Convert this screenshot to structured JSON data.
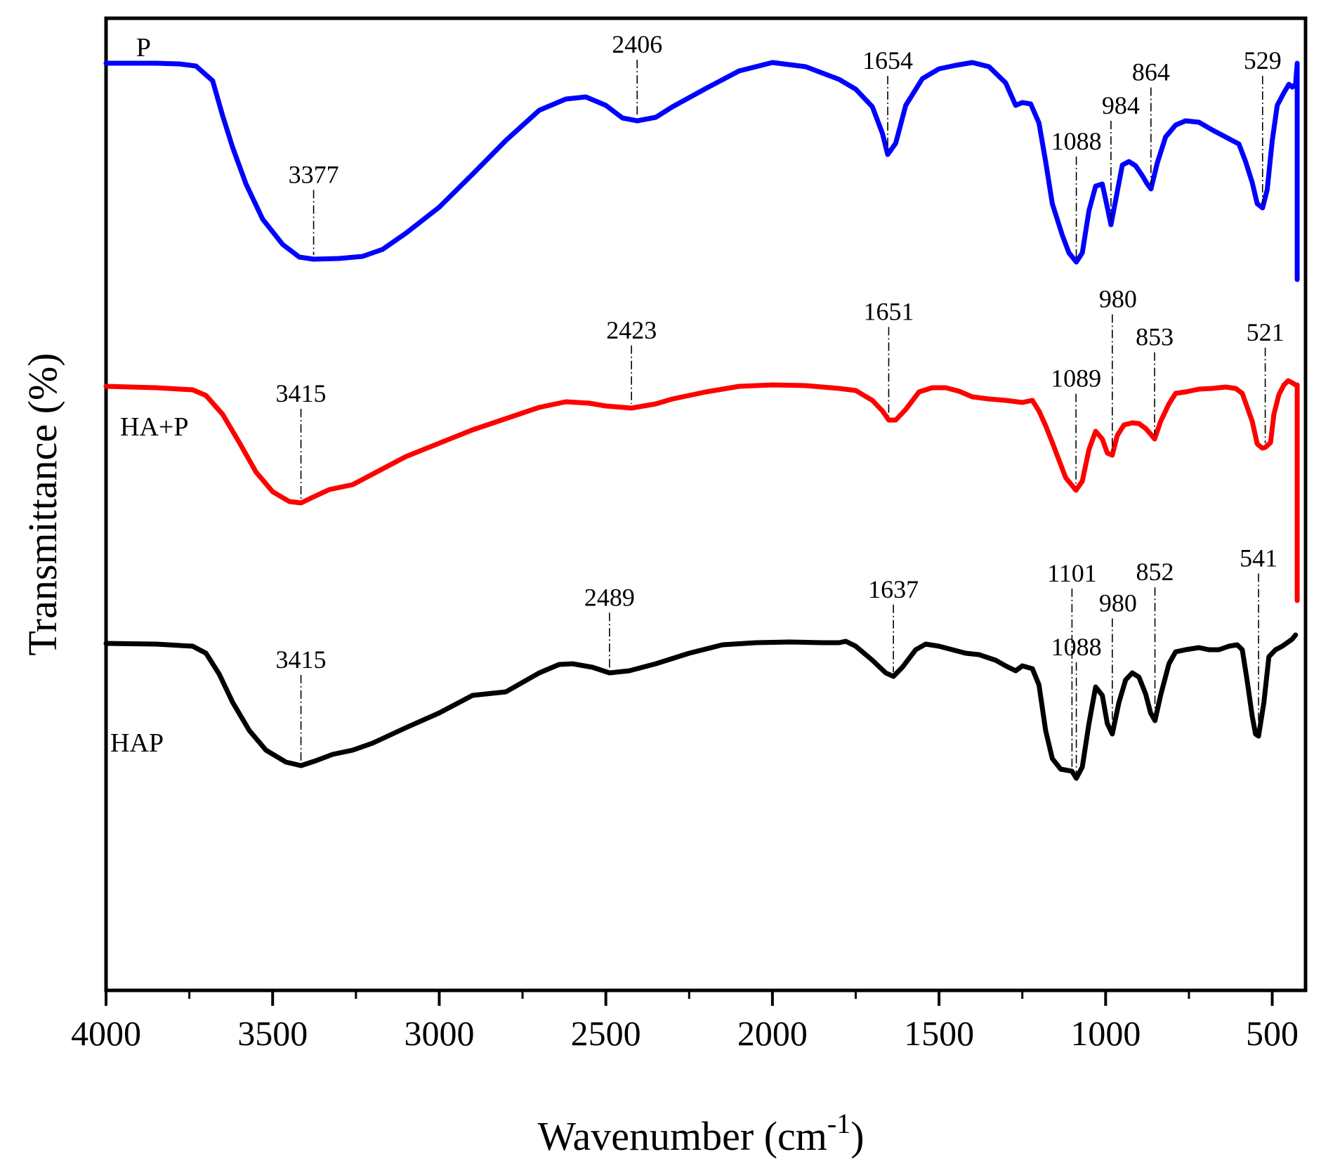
{
  "chart_data": {
    "type": "line",
    "xlabel": "Wavenumber (cm",
    "xlabel_sup": "-1",
    "xlabel_close": ")",
    "ylabel": "Transmittance (%)",
    "xlim": [
      4000,
      400
    ],
    "x_ticks": [
      4000,
      3500,
      3000,
      2500,
      2000,
      1500,
      1000,
      500
    ],
    "x_tick_labels": [
      "4000",
      "3500",
      "3000",
      "2500",
      "2000",
      "1500",
      "1000",
      "500"
    ],
    "x_minor_step": 250,
    "y_scale": "relative transmittance (offset, unlabeled)",
    "series": [
      {
        "name": "P",
        "color": "#0000ff",
        "baseline": 91,
        "points": [
          [
            4000,
            90
          ],
          [
            3850,
            90
          ],
          [
            3780,
            91
          ],
          [
            3730,
            94
          ],
          [
            3680,
            115
          ],
          [
            3650,
            165
          ],
          [
            3620,
            210
          ],
          [
            3580,
            262
          ],
          [
            3530,
            312
          ],
          [
            3470,
            348
          ],
          [
            3420,
            366
          ],
          [
            3377,
            369
          ],
          [
            3300,
            368
          ],
          [
            3230,
            365
          ],
          [
            3170,
            355
          ],
          [
            3100,
            332
          ],
          [
            3000,
            295
          ],
          [
            2900,
            248
          ],
          [
            2800,
            200
          ],
          [
            2700,
            157
          ],
          [
            2620,
            141
          ],
          [
            2560,
            138
          ],
          [
            2500,
            150
          ],
          [
            2450,
            168
          ],
          [
            2406,
            172
          ],
          [
            2350,
            167
          ],
          [
            2300,
            152
          ],
          [
            2200,
            126
          ],
          [
            2100,
            101
          ],
          [
            2000,
            89
          ],
          [
            1900,
            95
          ],
          [
            1800,
            113
          ],
          [
            1750,
            127
          ],
          [
            1700,
            152
          ],
          [
            1670,
            190
          ],
          [
            1654,
            220
          ],
          [
            1630,
            204
          ],
          [
            1600,
            150
          ],
          [
            1550,
            112
          ],
          [
            1500,
            98
          ],
          [
            1450,
            93
          ],
          [
            1400,
            89
          ],
          [
            1350,
            95
          ],
          [
            1300,
            118
          ],
          [
            1270,
            150
          ],
          [
            1250,
            146
          ],
          [
            1225,
            148
          ],
          [
            1200,
            175
          ],
          [
            1180,
            230
          ],
          [
            1160,
            290
          ],
          [
            1130,
            335
          ],
          [
            1110,
            360
          ],
          [
            1088,
            373
          ],
          [
            1070,
            360
          ],
          [
            1050,
            300
          ],
          [
            1030,
            265
          ],
          [
            1010,
            262
          ],
          [
            995,
            295
          ],
          [
            984,
            320
          ],
          [
            970,
            285
          ],
          [
            950,
            235
          ],
          [
            930,
            230
          ],
          [
            910,
            236
          ],
          [
            890,
            250
          ],
          [
            875,
            262
          ],
          [
            864,
            269
          ],
          [
            845,
            232
          ],
          [
            820,
            195
          ],
          [
            790,
            178
          ],
          [
            760,
            172
          ],
          [
            720,
            174
          ],
          [
            680,
            185
          ],
          [
            640,
            195
          ],
          [
            600,
            205
          ],
          [
            580,
            230
          ],
          [
            560,
            260
          ],
          [
            545,
            290
          ],
          [
            529,
            296
          ],
          [
            515,
            270
          ],
          [
            500,
            200
          ],
          [
            485,
            150
          ],
          [
            465,
            132
          ],
          [
            450,
            120
          ],
          [
            440,
            124
          ],
          [
            430,
            120
          ],
          [
            425,
            90
          ],
          [
            425,
            398
          ]
        ]
      },
      {
        "name": "HA+P",
        "color": "#ff0000",
        "baseline": 550,
        "points": [
          [
            4000,
            550
          ],
          [
            3850,
            552
          ],
          [
            3740,
            555
          ],
          [
            3700,
            563
          ],
          [
            3650,
            590
          ],
          [
            3600,
            630
          ],
          [
            3550,
            672
          ],
          [
            3500,
            700
          ],
          [
            3450,
            714
          ],
          [
            3415,
            716
          ],
          [
            3380,
            708
          ],
          [
            3330,
            697
          ],
          [
            3260,
            690
          ],
          [
            3200,
            675
          ],
          [
            3100,
            650
          ],
          [
            3000,
            631
          ],
          [
            2900,
            612
          ],
          [
            2800,
            596
          ],
          [
            2700,
            580
          ],
          [
            2620,
            572
          ],
          [
            2550,
            574
          ],
          [
            2500,
            578
          ],
          [
            2423,
            581
          ],
          [
            2350,
            575
          ],
          [
            2300,
            568
          ],
          [
            2200,
            558
          ],
          [
            2100,
            550
          ],
          [
            2000,
            548
          ],
          [
            1900,
            549
          ],
          [
            1800,
            553
          ],
          [
            1750,
            556
          ],
          [
            1700,
            570
          ],
          [
            1670,
            585
          ],
          [
            1651,
            598
          ],
          [
            1630,
            598
          ],
          [
            1600,
            583
          ],
          [
            1560,
            558
          ],
          [
            1520,
            552
          ],
          [
            1480,
            552
          ],
          [
            1440,
            557
          ],
          [
            1400,
            565
          ],
          [
            1350,
            568
          ],
          [
            1300,
            570
          ],
          [
            1250,
            573
          ],
          [
            1220,
            570
          ],
          [
            1200,
            585
          ],
          [
            1180,
            606
          ],
          [
            1160,
            630
          ],
          [
            1140,
            655
          ],
          [
            1120,
            680
          ],
          [
            1089,
            698
          ],
          [
            1070,
            685
          ],
          [
            1050,
            640
          ],
          [
            1030,
            614
          ],
          [
            1010,
            625
          ],
          [
            995,
            645
          ],
          [
            980,
            648
          ],
          [
            965,
            620
          ],
          [
            945,
            605
          ],
          [
            920,
            602
          ],
          [
            900,
            603
          ],
          [
            880,
            610
          ],
          [
            865,
            618
          ],
          [
            853,
            625
          ],
          [
            835,
            600
          ],
          [
            810,
            575
          ],
          [
            790,
            560
          ],
          [
            760,
            558
          ],
          [
            720,
            554
          ],
          [
            680,
            553
          ],
          [
            640,
            551
          ],
          [
            610,
            553
          ],
          [
            590,
            560
          ],
          [
            575,
            580
          ],
          [
            560,
            600
          ],
          [
            545,
            632
          ],
          [
            530,
            638
          ],
          [
            521,
            637
          ],
          [
            505,
            630
          ],
          [
            495,
            590
          ],
          [
            480,
            562
          ],
          [
            465,
            548
          ],
          [
            452,
            542
          ],
          [
            440,
            545
          ],
          [
            430,
            548
          ],
          [
            425,
            548
          ],
          [
            425,
            855
          ]
        ]
      },
      {
        "name": "HAP",
        "color": "#000000",
        "baseline": 916,
        "points": [
          [
            4000,
            916
          ],
          [
            3850,
            917
          ],
          [
            3740,
            920
          ],
          [
            3700,
            930
          ],
          [
            3660,
            960
          ],
          [
            3620,
            1000
          ],
          [
            3570,
            1040
          ],
          [
            3520,
            1068
          ],
          [
            3460,
            1085
          ],
          [
            3415,
            1090
          ],
          [
            3370,
            1083
          ],
          [
            3320,
            1074
          ],
          [
            3260,
            1068
          ],
          [
            3200,
            1058
          ],
          [
            3100,
            1036
          ],
          [
            3000,
            1015
          ],
          [
            2900,
            990
          ],
          [
            2800,
            985
          ],
          [
            2700,
            958
          ],
          [
            2640,
            946
          ],
          [
            2600,
            945
          ],
          [
            2540,
            950
          ],
          [
            2489,
            958
          ],
          [
            2430,
            955
          ],
          [
            2350,
            945
          ],
          [
            2250,
            930
          ],
          [
            2150,
            918
          ],
          [
            2050,
            915
          ],
          [
            1950,
            914
          ],
          [
            1850,
            915
          ],
          [
            1800,
            915
          ],
          [
            1780,
            913
          ],
          [
            1750,
            920
          ],
          [
            1700,
            940
          ],
          [
            1660,
            958
          ],
          [
            1637,
            963
          ],
          [
            1610,
            950
          ],
          [
            1570,
            925
          ],
          [
            1540,
            917
          ],
          [
            1500,
            920
          ],
          [
            1460,
            925
          ],
          [
            1420,
            930
          ],
          [
            1380,
            932
          ],
          [
            1330,
            940
          ],
          [
            1300,
            948
          ],
          [
            1270,
            955
          ],
          [
            1250,
            948
          ],
          [
            1220,
            952
          ],
          [
            1200,
            975
          ],
          [
            1180,
            1040
          ],
          [
            1160,
            1080
          ],
          [
            1135,
            1095
          ],
          [
            1101,
            1098
          ],
          [
            1088,
            1108
          ],
          [
            1070,
            1092
          ],
          [
            1050,
            1030
          ],
          [
            1030,
            978
          ],
          [
            1010,
            990
          ],
          [
            995,
            1030
          ],
          [
            980,
            1045
          ],
          [
            960,
            1000
          ],
          [
            940,
            968
          ],
          [
            920,
            958
          ],
          [
            900,
            964
          ],
          [
            880,
            988
          ],
          [
            865,
            1015
          ],
          [
            852,
            1026
          ],
          [
            835,
            990
          ],
          [
            810,
            945
          ],
          [
            790,
            928
          ],
          [
            760,
            925
          ],
          [
            720,
            922
          ],
          [
            690,
            925
          ],
          [
            660,
            925
          ],
          [
            630,
            920
          ],
          [
            605,
            918
          ],
          [
            590,
            925
          ],
          [
            575,
            970
          ],
          [
            560,
            1020
          ],
          [
            550,
            1045
          ],
          [
            541,
            1048
          ],
          [
            525,
            1000
          ],
          [
            510,
            935
          ],
          [
            490,
            925
          ],
          [
            470,
            920
          ],
          [
            455,
            915
          ],
          [
            440,
            910
          ],
          [
            430,
            904
          ]
        ]
      }
    ],
    "annotations": [
      {
        "series": "P",
        "label": "3377",
        "x": 3377,
        "label_x": 3377,
        "row": 0
      },
      {
        "series": "P",
        "label": "2406",
        "x": 2406,
        "label_x": 2406,
        "row": 0
      },
      {
        "series": "P",
        "label": "1654",
        "x": 1654,
        "label_x": 1654,
        "row": 0
      },
      {
        "series": "P",
        "label": "1088",
        "x": 1088,
        "label_x": 1088,
        "row": 1
      },
      {
        "series": "P",
        "label": "984",
        "x": 984,
        "label_x": 984,
        "row": 0
      },
      {
        "series": "P",
        "label": "864",
        "x": 864,
        "label_x": 864,
        "row": 0
      },
      {
        "series": "P",
        "label": "529",
        "x": 529,
        "label_x": 529,
        "row": 0
      },
      {
        "series": "HA+P",
        "label": "3415",
        "x": 3415,
        "label_x": 3415,
        "row": 0
      },
      {
        "series": "HA+P",
        "label": "2423",
        "x": 2423,
        "label_x": 2423,
        "row": 0
      },
      {
        "series": "HA+P",
        "label": "1651",
        "x": 1651,
        "label_x": 1651,
        "row": 0
      },
      {
        "series": "HA+P",
        "label": "1089",
        "x": 1089,
        "label_x": 1089,
        "row": 1
      },
      {
        "series": "HA+P",
        "label": "980",
        "x": 980,
        "label_x": 980,
        "row": 0
      },
      {
        "series": "HA+P",
        "label": "853",
        "x": 853,
        "label_x": 853,
        "row": 0
      },
      {
        "series": "HA+P",
        "label": "521",
        "x": 521,
        "label_x": 521,
        "row": 0
      },
      {
        "series": "HAP",
        "label": "3415",
        "x": 3415,
        "label_x": 3415,
        "row": 0
      },
      {
        "series": "HAP",
        "label": "2489",
        "x": 2489,
        "label_x": 2489,
        "row": 0
      },
      {
        "series": "HAP",
        "label": "1637",
        "x": 1637,
        "label_x": 1637,
        "row": 0
      },
      {
        "series": "HAP",
        "label": "1101",
        "x": 1101,
        "label_x": 1101,
        "row": 0
      },
      {
        "series": "HAP",
        "label": "1088",
        "x": 1088,
        "label_x": 1088,
        "row": 1
      },
      {
        "series": "HAP",
        "label": "980",
        "x": 980,
        "label_x": 980,
        "row": 0
      },
      {
        "series": "HAP",
        "label": "852",
        "x": 852,
        "label_x": 852,
        "row": 0
      },
      {
        "series": "HAP",
        "label": "541",
        "x": 541,
        "label_x": 541,
        "row": 0
      }
    ]
  }
}
